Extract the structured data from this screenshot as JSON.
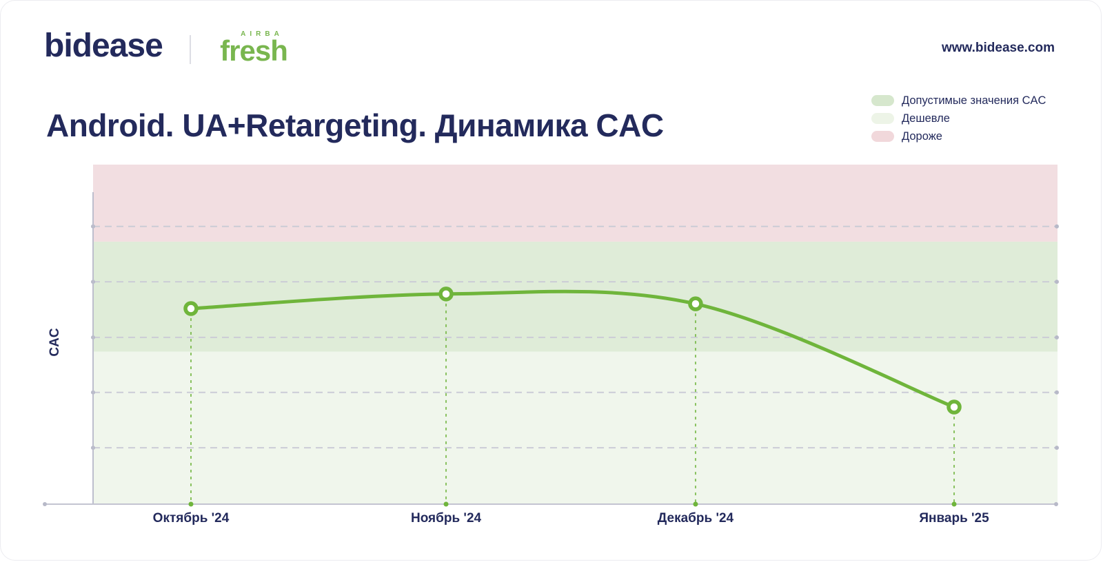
{
  "header": {
    "logo_primary": "bidease",
    "logo_secondary_top": "AIRBA",
    "logo_secondary": "fresh",
    "website": "www.bidease.com"
  },
  "title": "Android. UA+Retargeting. Динамика CAC",
  "legend": {
    "items": [
      {
        "label": "Допустимые значения CAC",
        "color": "#d6e7cd"
      },
      {
        "label": "Дешевле",
        "color": "#edf4e7"
      },
      {
        "label": "Дороже",
        "color": "#f1d8db"
      }
    ]
  },
  "chart_data": {
    "type": "line",
    "title": "Android. UA+Retargeting. Динамика CAC",
    "xlabel": "",
    "ylabel": "CAC",
    "y_unit": "relative CAC index 0–100 (y axis unlabeled in source image)",
    "ylim": [
      0,
      100
    ],
    "categories": [
      "Октябрь '24",
      "Ноябрь '24",
      "Декабрь '24",
      "Январь '25"
    ],
    "series": [
      {
        "name": "CAC",
        "values": [
          57.6,
          61.9,
          59.0,
          28.6
        ]
      }
    ],
    "gridline_values": [
      81.8,
      65.5,
      49.1,
      32.9,
      16.6
    ],
    "grid": "dashed horizontal",
    "legend_position": "top-right",
    "line_color": "#6fb53b",
    "text_color": "#232a5c",
    "axis_color": "#c3c4d1",
    "grid_color": "#cbccd6",
    "dot_color": "#b7b9c8",
    "bands": [
      {
        "label": "Дороже",
        "from": 77.3,
        "to": 100,
        "color": "#f2dee1"
      },
      {
        "label": "Допустимые значения CAC",
        "from": 44.9,
        "to": 77.3,
        "color": "#dfecd8"
      },
      {
        "label": "Дешевле",
        "from": 0,
        "to": 44.9,
        "color": "#f0f6ec"
      }
    ]
  }
}
